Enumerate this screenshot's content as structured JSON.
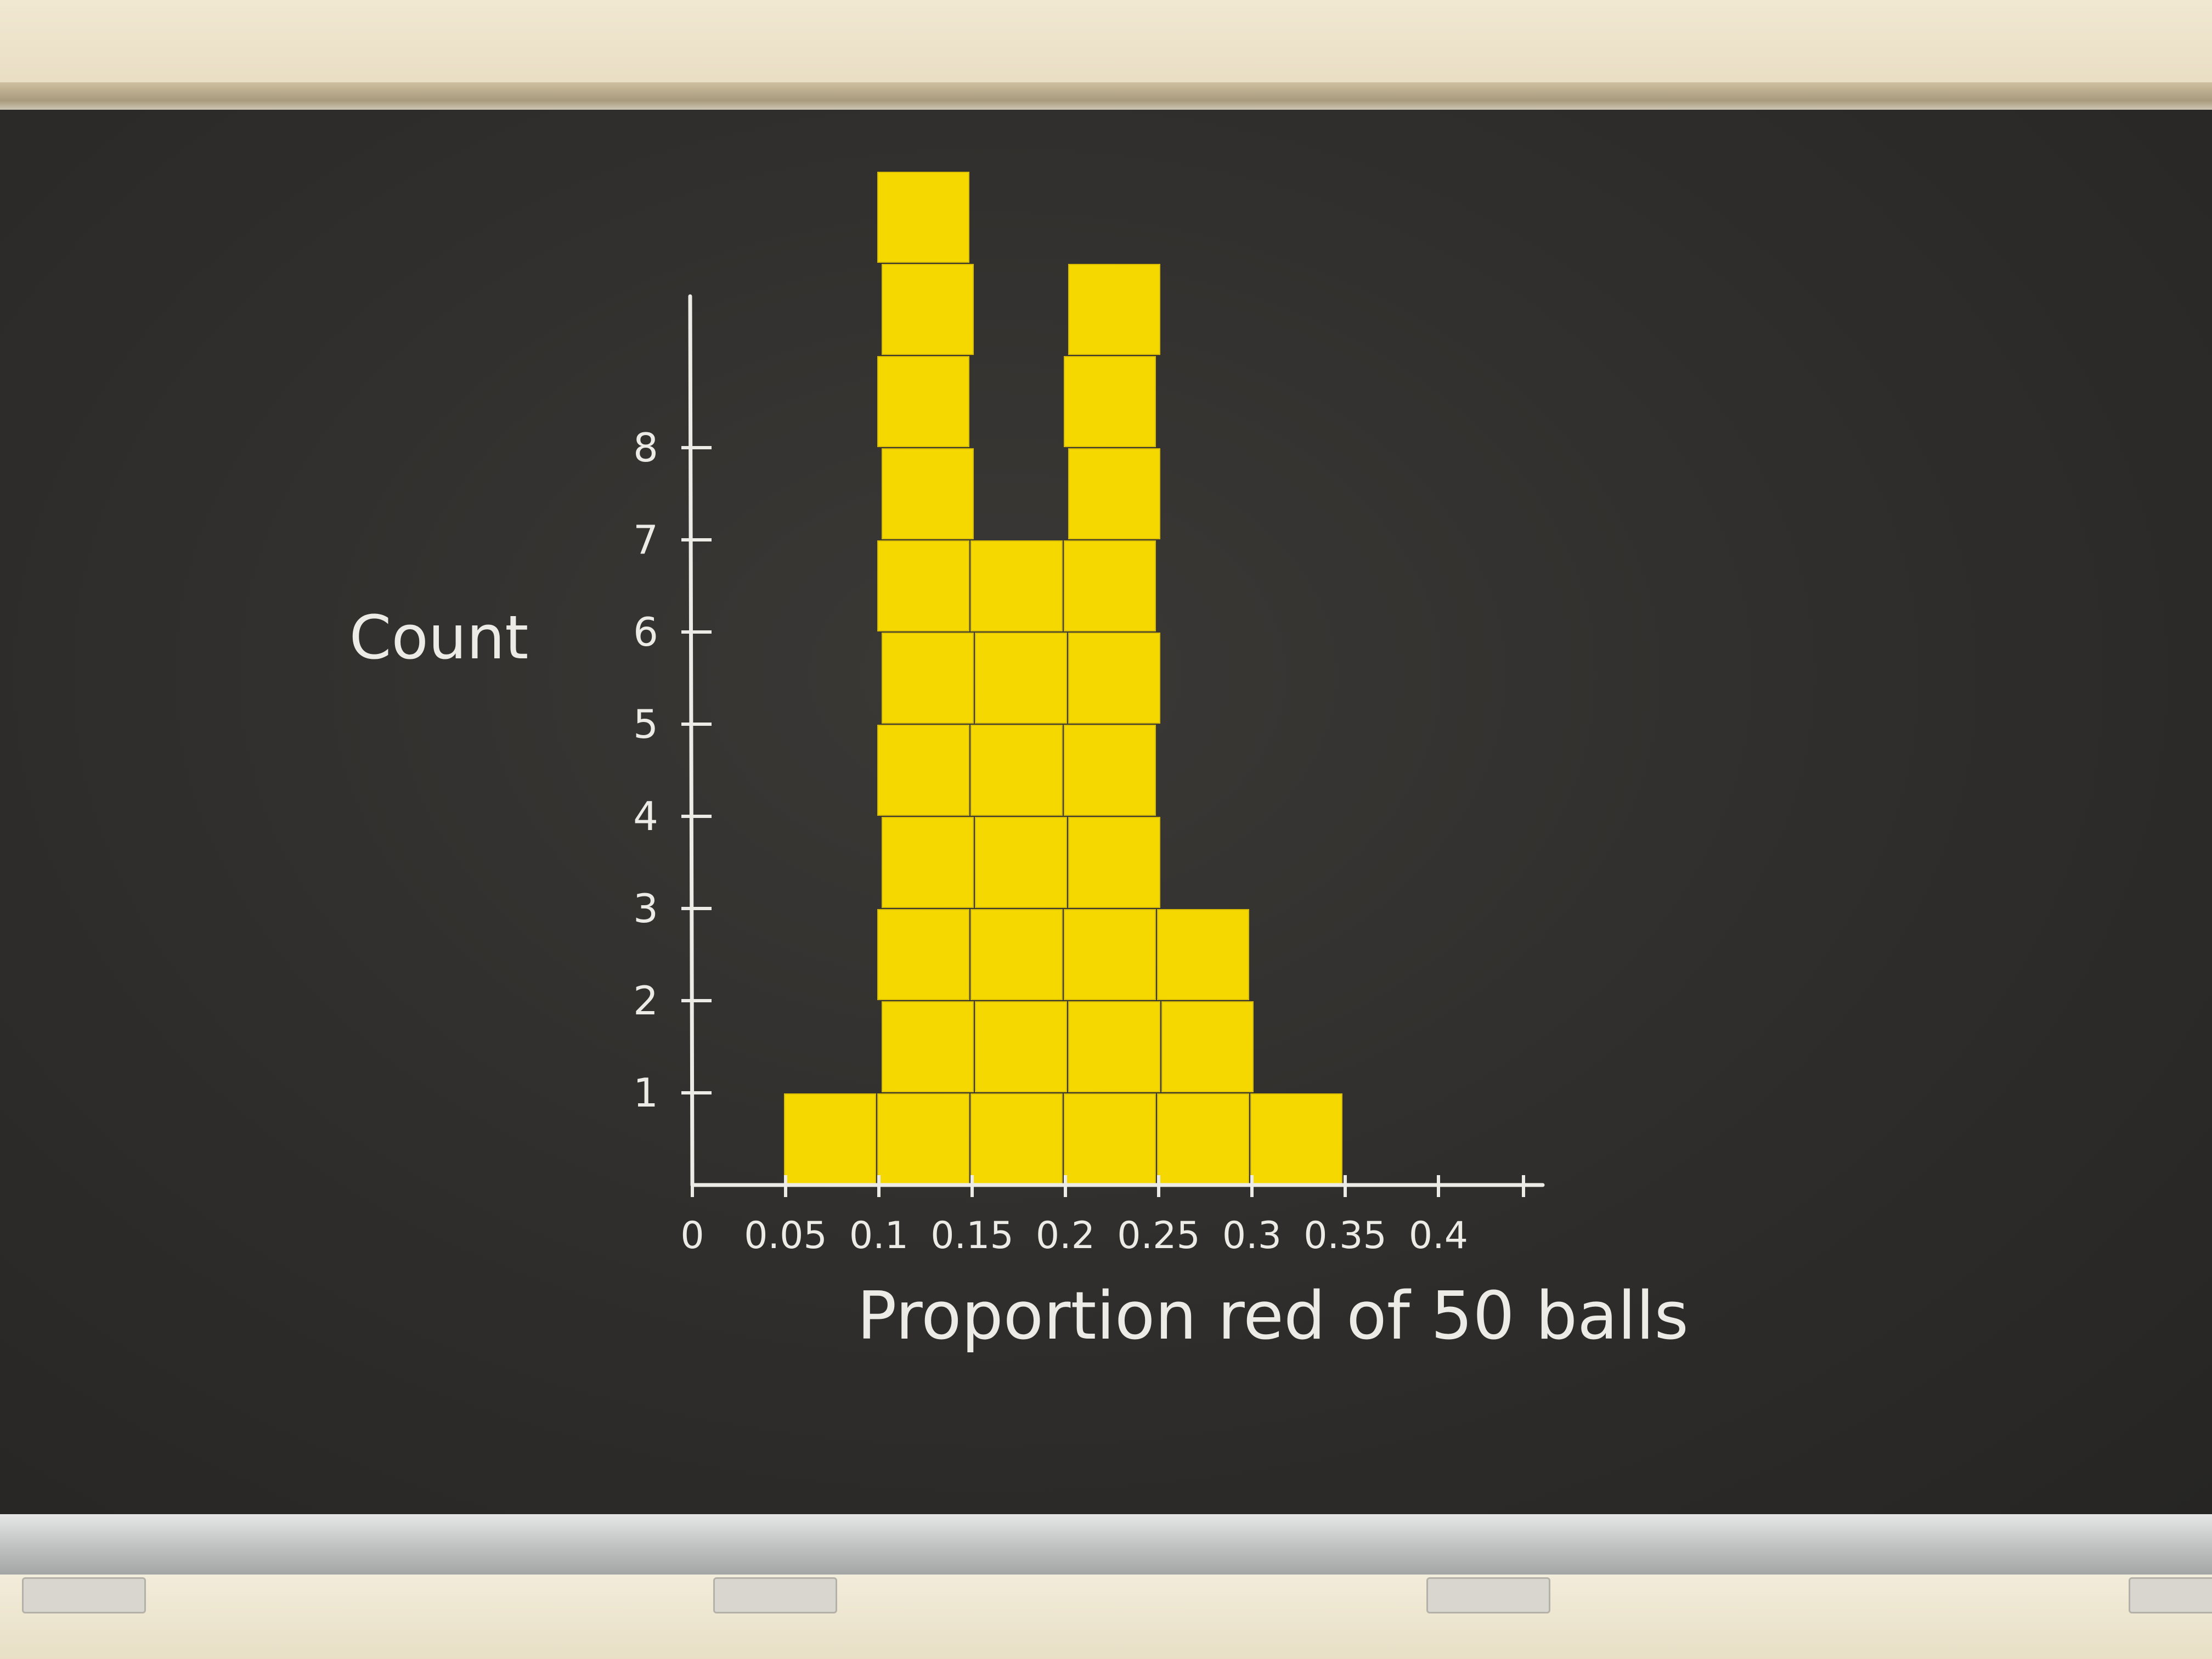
{
  "chart_data": {
    "type": "bar",
    "categories": [
      "0.05",
      "0.1",
      "0.15",
      "0.2",
      "0.25",
      "0.3"
    ],
    "values": [
      1,
      11,
      7,
      10,
      3,
      1
    ],
    "xlabel": "Proportion red of 50 balls",
    "ylabel": "Count",
    "x_tick_labels": [
      "0",
      "0.05",
      "0.1",
      "0.15",
      "0.2",
      "0.25",
      "0.3",
      "0.35",
      "0.4"
    ],
    "y_tick_labels": [
      "1",
      "2",
      "3",
      "4",
      "5",
      "6",
      "7",
      "8"
    ],
    "ylim": [
      0,
      11
    ],
    "grid": false,
    "bar_color": "#f5d800"
  },
  "colors": {
    "chalkboard": "#2f2d2b",
    "chalk": "#ecebe6",
    "sticky_note": "#f5d800"
  }
}
